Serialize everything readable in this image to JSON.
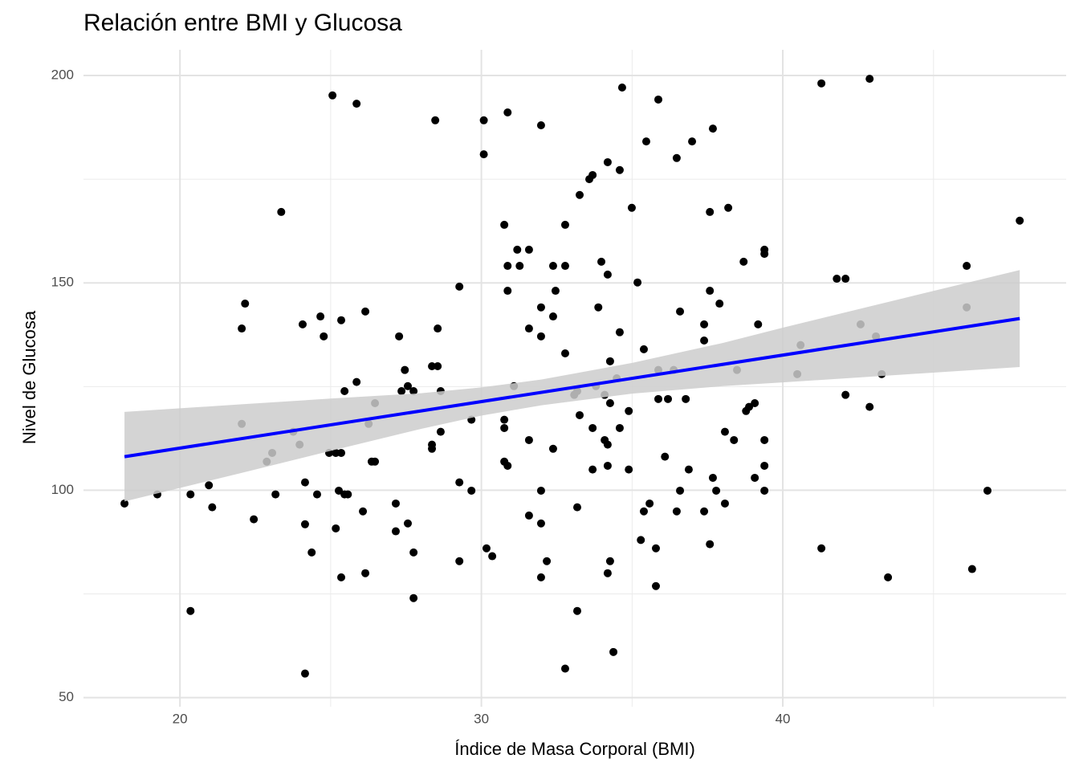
{
  "chart_data": {
    "type": "scatter",
    "title": "Relación entre BMI y Glucosa",
    "xlabel": "Índice de Masa Corporal (BMI)",
    "ylabel": "Nivel de Glucosa",
    "xlim": [
      16.8,
      49.4
    ],
    "ylim": [
      47.8,
      206.2
    ],
    "xticks": [
      20,
      30,
      40
    ],
    "yticks": [
      50,
      100,
      150,
      200
    ],
    "xminor": [
      25,
      35,
      45
    ],
    "yminor": [
      75,
      125,
      175
    ],
    "grid": true,
    "color": "#000000",
    "x": [
      18.16,
      19.25,
      20.35,
      20.35,
      20.96,
      21.07,
      22.05,
      22.16,
      22.05,
      22.45,
      22.88,
      23.06,
      23.17,
      23.36,
      23.76,
      23.97,
      24.07,
      24.15,
      24.15,
      24.15,
      24.37,
      24.55,
      24.66,
      24.77,
      24.95,
      25.06,
      25.17,
      25.17,
      25.27,
      25.35,
      25.35,
      25.35,
      25.46,
      25.46,
      25.57,
      25.86,
      25.86,
      26.07,
      26.15,
      26.15,
      26.26,
      26.36,
      26.47,
      26.47,
      27.16,
      27.16,
      27.27,
      27.35,
      27.46,
      27.56,
      27.56,
      27.75,
      27.75,
      27.75,
      28.36,
      28.36,
      28.36,
      28.47,
      28.55,
      28.55,
      28.65,
      28.65,
      29.27,
      29.27,
      29.27,
      29.67,
      29.67,
      30.08,
      30.08,
      30.17,
      30.36,
      30.76,
      30.76,
      30.76,
      30.76,
      30.87,
      30.87,
      30.87,
      30.87,
      31.08,
      31.19,
      31.27,
      31.58,
      31.58,
      31.58,
      31.58,
      31.98,
      31.98,
      31.98,
      31.98,
      31.98,
      31.98,
      32.17,
      32.38,
      32.38,
      32.38,
      32.46,
      32.78,
      32.78,
      32.78,
      32.78,
      33.08,
      33.18,
      33.18,
      33.18,
      33.26,
      33.26,
      33.58,
      33.69,
      33.69,
      33.69,
      33.8,
      33.88,
      33.98,
      34.09,
      34.09,
      34.19,
      34.19,
      34.19,
      34.19,
      34.19,
      34.27,
      34.27,
      34.27,
      34.38,
      34.49,
      34.59,
      34.59,
      34.59,
      34.67,
      34.89,
      34.89,
      34.99,
      35.18,
      35.29,
      35.39,
      35.39,
      35.47,
      35.58,
      35.79,
      35.79,
      35.87,
      35.87,
      35.87,
      36.09,
      36.19,
      36.38,
      36.48,
      36.48,
      36.59,
      36.59,
      36.78,
      36.88,
      36.99,
      37.39,
      37.39,
      37.39,
      37.58,
      37.58,
      37.58,
      37.68,
      37.68,
      37.79,
      37.9,
      38.08,
      38.08,
      38.19,
      38.38,
      38.48,
      38.7,
      38.78,
      38.88,
      39.07,
      39.07,
      39.18,
      39.39,
      39.39,
      39.39,
      39.39,
      39.39,
      40.48,
      40.59,
      41.28,
      41.28,
      41.79,
      42.08,
      42.08,
      42.58,
      42.88,
      42.88,
      43.09,
      43.28,
      43.49,
      46.1,
      46.1,
      46.28,
      46.79,
      47.86
    ],
    "y": [
      96.8,
      99,
      99,
      70.9,
      101.2,
      95.9,
      139,
      145,
      116,
      93,
      106.9,
      109,
      99,
      167.1,
      114.1,
      111,
      140,
      101.9,
      91.8,
      55.8,
      85,
      99,
      141.9,
      137.1,
      109,
      195.2,
      109,
      90.8,
      99.9,
      109,
      141,
      79,
      99,
      123.9,
      99,
      126.1,
      193.2,
      94.9,
      143.1,
      80,
      116,
      106.9,
      106.9,
      121,
      96.8,
      90.1,
      137.1,
      123.9,
      129,
      125.1,
      92,
      123.9,
      85,
      74,
      111,
      110,
      129.9,
      189.2,
      129.9,
      139,
      123.9,
      114.1,
      149.1,
      101.9,
      82.9,
      117,
      99.9,
      189.2,
      181,
      86,
      84.1,
      164,
      117,
      115,
      106.9,
      191.1,
      154.1,
      148.1,
      105.9,
      125.1,
      158,
      154.1,
      158,
      139,
      112.1,
      93.9,
      188,
      144.1,
      137.1,
      99.9,
      92,
      79,
      82.9,
      154.1,
      141.9,
      110,
      148.1,
      164,
      154.1,
      133,
      57,
      123,
      123.9,
      95.9,
      70.9,
      171.2,
      118.1,
      175,
      176,
      115,
      105,
      125.1,
      144.1,
      155.1,
      123,
      112.1,
      179.1,
      152,
      111,
      105.9,
      80,
      131.1,
      121,
      82.9,
      61,
      127,
      177.2,
      138.1,
      115,
      197.1,
      119.1,
      105,
      168.1,
      150.1,
      88,
      134,
      94.9,
      184.1,
      96.8,
      86,
      76.9,
      194.2,
      129,
      122,
      108.1,
      122,
      129,
      180.1,
      94.9,
      143.1,
      99.9,
      122,
      105,
      184.1,
      140,
      136.1,
      94.9,
      167.1,
      148.1,
      87,
      187.2,
      103,
      99.9,
      145,
      114.1,
      96.8,
      168.1,
      112.1,
      129,
      155.1,
      119.1,
      120.1,
      103,
      121,
      140,
      158,
      157,
      112.1,
      105.9,
      99.9,
      128,
      135,
      198.1,
      86,
      151,
      151,
      123,
      140,
      199.2,
      120.1,
      137.1,
      128,
      79,
      154.1,
      144.1,
      81,
      99.9,
      165
    ],
    "fit": {
      "x": [
        18.16,
        47.86
      ],
      "y": [
        108.1,
        141.4
      ],
      "color": "#0000ff"
    },
    "band": {
      "x": [
        18.16,
        22,
        25,
        28,
        30,
        32,
        35,
        38,
        40,
        44,
        47.86
      ],
      "lower": [
        97.3,
        104.1,
        109.5,
        114.8,
        118.0,
        120.5,
        123.3,
        125.1,
        126.0,
        127.9,
        129.7
      ],
      "upper": [
        118.9,
        120.7,
        122.1,
        123.4,
        124.8,
        126.7,
        130.7,
        135.5,
        139.2,
        146.3,
        153.1
      ],
      "color": "#cccccc"
    }
  }
}
